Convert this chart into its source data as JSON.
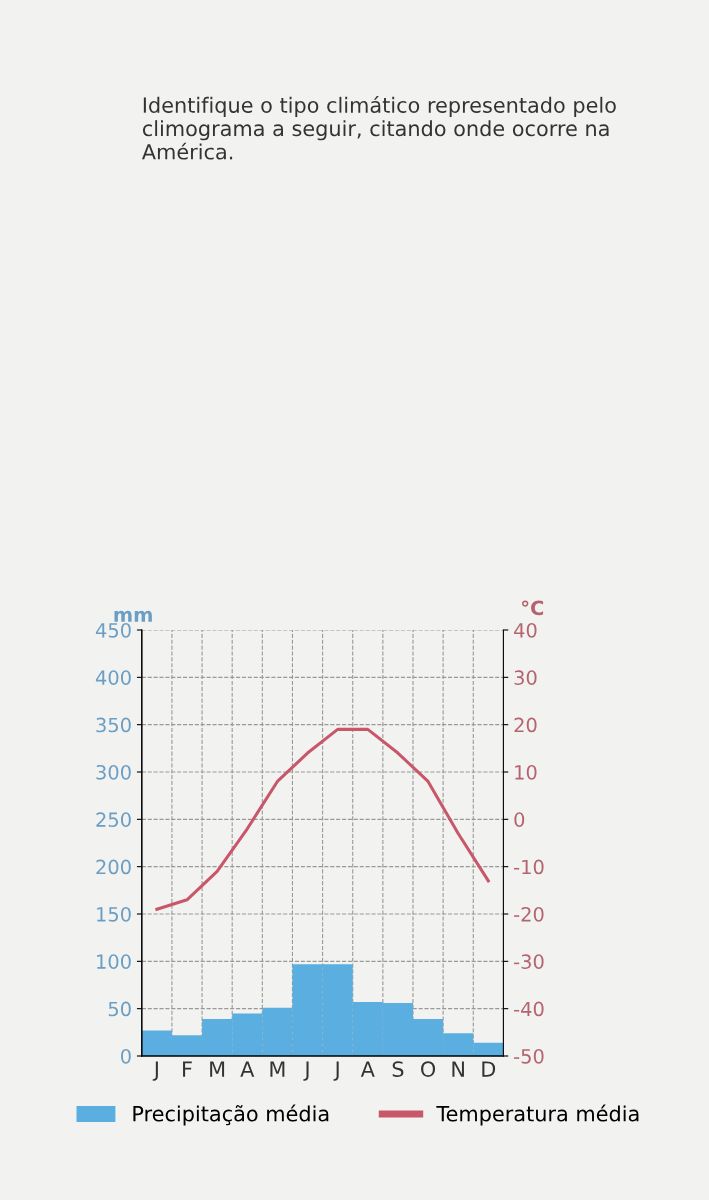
{
  "chart_data": {
    "type": "bar",
    "title": "Identifique o tipo climático representado pelo climograma a seguir, citando onde ocorre na América.",
    "categories": [
      "J",
      "F",
      "M",
      "A",
      "M",
      "J",
      "J",
      "A",
      "S",
      "O",
      "N",
      "D"
    ],
    "series": [
      {
        "name": "Precipitação média",
        "color": "#5aaee0",
        "values": [
          27,
          22,
          39,
          45,
          51,
          97,
          97,
          57,
          56,
          39,
          24,
          14
        ]
      },
      {
        "name": "Temperatura média",
        "type": "line",
        "axis": "y2",
        "color": "#c8576a",
        "values": [
          -19,
          -17,
          -11,
          -2,
          8,
          14,
          19,
          19,
          14,
          8,
          -3,
          -13
        ]
      }
    ],
    "ylabel": "mm",
    "y2label": "°C",
    "ylim": [
      0,
      450
    ],
    "yticks": [
      0,
      50,
      100,
      150,
      200,
      250,
      300,
      350,
      400,
      450
    ],
    "y2lim": [
      -50,
      40
    ],
    "y2ticks": [
      -50,
      -40,
      -30,
      -20,
      -10,
      0,
      10,
      20,
      30,
      40
    ],
    "grid": true,
    "legend": "bottom",
    "marker": "none",
    "line_style": "solid"
  }
}
